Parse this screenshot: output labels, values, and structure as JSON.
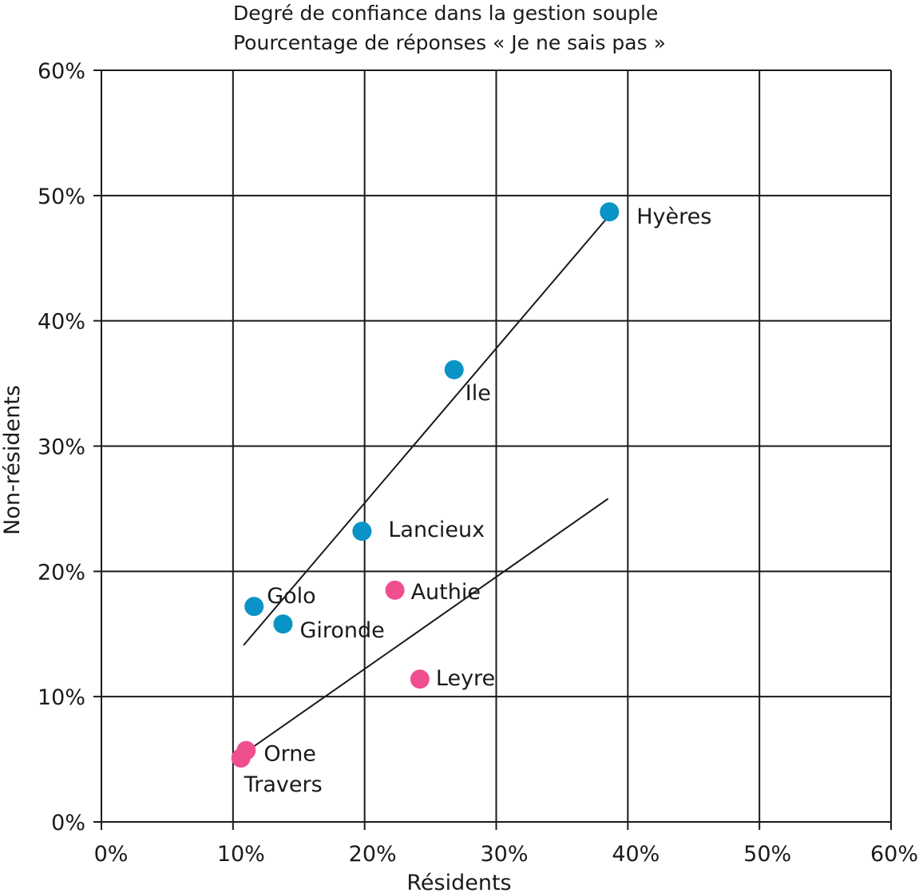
{
  "chart_data": {
    "type": "scatter",
    "title": "Degré de confiance dans la gestion souple",
    "subtitle": "Pourcentage de réponses « Je ne sais pas »",
    "xlabel": "Résidents",
    "ylabel": "Non-résidents",
    "xlim": [
      0,
      60
    ],
    "ylim": [
      0,
      60
    ],
    "x_ticks": [
      "0%",
      "10%",
      "20%",
      "30%",
      "40%",
      "50%",
      "60%"
    ],
    "y_ticks": [
      "0%",
      "10%",
      "20%",
      "30%",
      "40%",
      "50%",
      "60%"
    ],
    "grid": true,
    "series": [
      {
        "color": "#0a93c6",
        "points": [
          {
            "label": "Hyères",
            "x": 38.6,
            "y": 48.7
          },
          {
            "label": "Ile",
            "x": 26.8,
            "y": 36.1
          },
          {
            "label": "Lancieux",
            "x": 19.8,
            "y": 23.2
          },
          {
            "label": "Golo",
            "x": 11.6,
            "y": 17.2
          },
          {
            "label": "Gironde",
            "x": 13.8,
            "y": 15.8
          }
        ],
        "trendline": {
          "x": [
            10.8,
            38.5
          ],
          "y": [
            14.1,
            48.3
          ]
        }
      },
      {
        "color": "#ef4f8f",
        "points": [
          {
            "label": "Authie",
            "x": 22.3,
            "y": 18.5
          },
          {
            "label": "Leyre",
            "x": 24.2,
            "y": 11.4
          },
          {
            "label": "Orne",
            "x": 11.0,
            "y": 5.7
          },
          {
            "label": "Travers",
            "x": 10.6,
            "y": 5.1
          }
        ],
        "trendline": {
          "x": [
            11.0,
            38.5
          ],
          "y": [
            5.6,
            25.8
          ]
        }
      }
    ]
  }
}
